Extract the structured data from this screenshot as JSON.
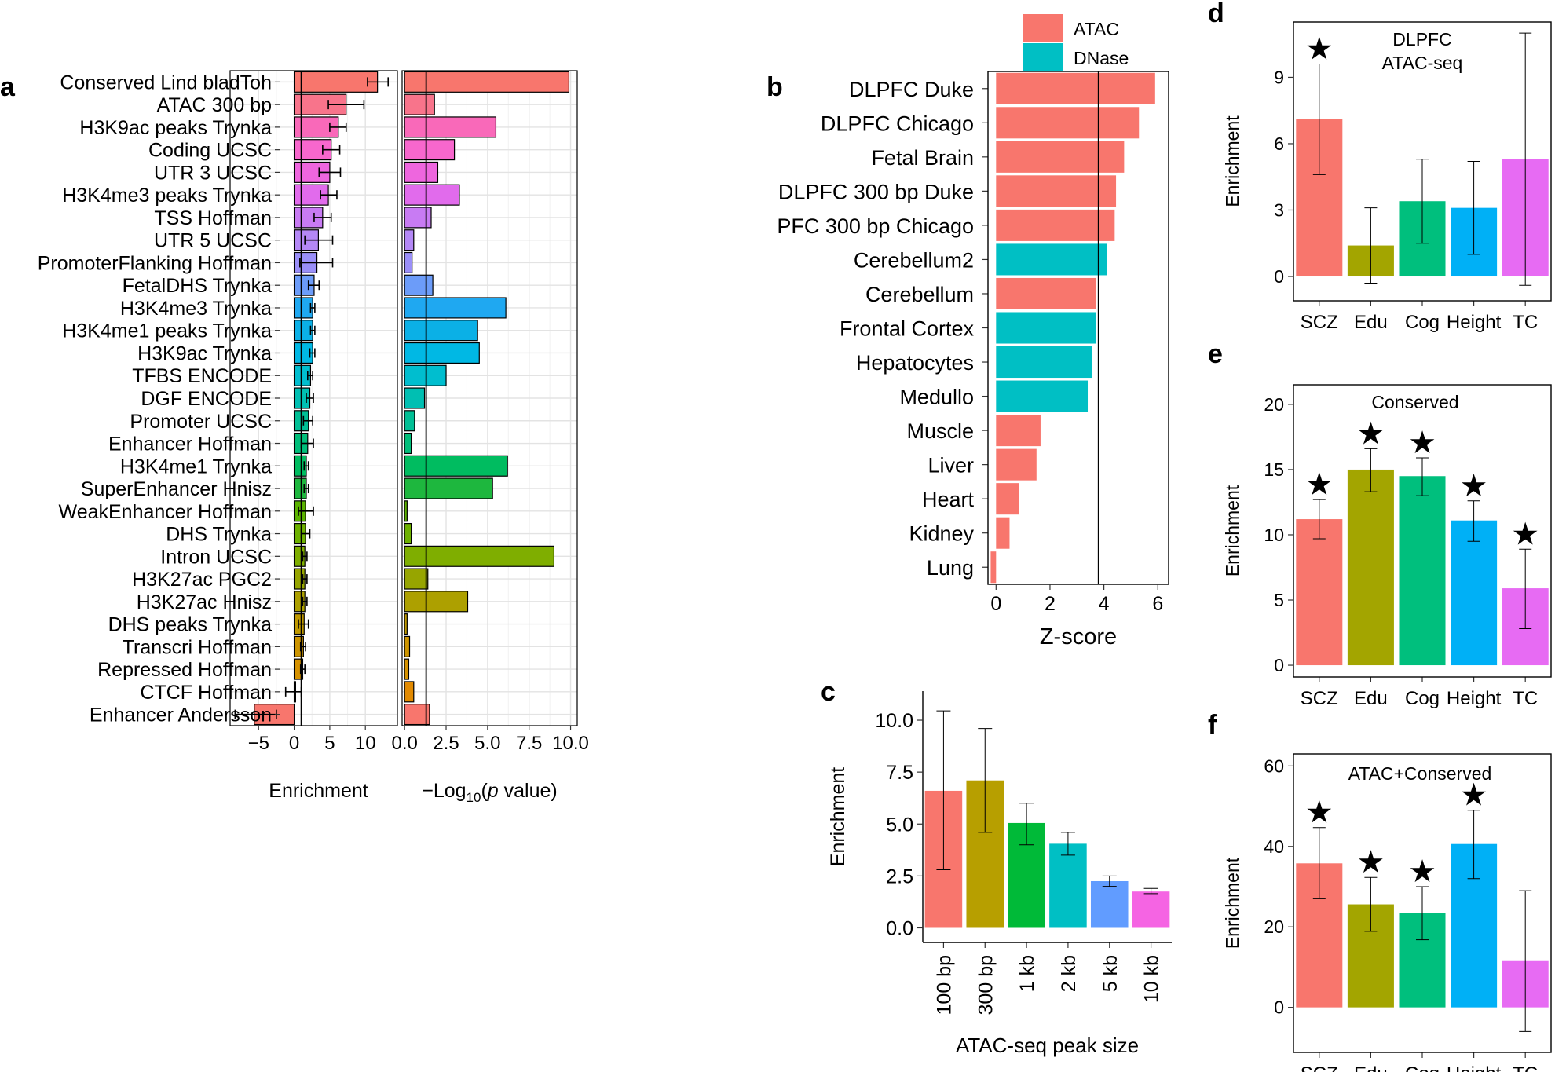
{
  "chart_data": [
    {
      "panel": "a",
      "type": "bar",
      "orientation": "horizontal",
      "subplots": [
        {
          "name": "enrichment",
          "xlabel": "Enrichment",
          "xlim": [
            -9,
            14.5
          ],
          "xticks": [
            -5,
            0,
            5,
            10
          ],
          "xtick_labels": [
            "−5",
            "0",
            "5",
            "10"
          ],
          "reference_line": 1
        },
        {
          "name": "pvalue",
          "xlabel": "−Log10(p value)",
          "xlabel_parts": [
            "−Log",
            "10",
            "(",
            "p",
            " value)"
          ],
          "xlim": [
            -0.15,
            10.4
          ],
          "xticks": [
            0,
            2.5,
            5,
            7.5,
            10
          ],
          "xtick_labels": [
            "0.0",
            "2.5",
            "5.0",
            "7.5",
            "10.0"
          ],
          "reference_line": 1.3
        }
      ],
      "categories": [
        "Conserved Lind bladToh",
        "ATAC 300 bp",
        "H3K9ac peaks Trynka",
        "Coding UCSC",
        "UTR 3 UCSC",
        "H3K4me3 peaks Trynka",
        "TSS Hoffman",
        "UTR 5 UCSC",
        "PromoterFlanking Hoffman",
        "FetalDHS Trynka",
        "H3K4me3 Trynka",
        "H3K4me1 peaks Trynka",
        "H3K9ac Trynka",
        "TFBS ENCODE",
        "DGF ENCODE",
        "Promoter UCSC",
        "Enhancer Hoffman",
        "H3K4me1 Trynka",
        "SuperEnhancer Hnisz",
        "WeakEnhancer Hoffman",
        "DHS Trynka",
        "Intron UCSC",
        "H3K27ac PGC2",
        "H3K27ac Hnisz",
        "DHS peaks Trynka",
        "Transcri Hoffman",
        "Repressed Hoffman",
        "CTCF Hoffman",
        "Enhancer Andersson"
      ],
      "enrichment": [
        11.7,
        7.3,
        6.2,
        5.2,
        5.0,
        4.8,
        4.0,
        3.4,
        3.2,
        2.8,
        2.6,
        2.6,
        2.6,
        2.3,
        2.2,
        2.0,
        1.9,
        1.7,
        1.7,
        1.6,
        1.6,
        1.5,
        1.5,
        1.5,
        1.4,
        1.3,
        1.2,
        0.2,
        -5.6
      ],
      "enrichment_err_low": [
        10.3,
        4.8,
        5.0,
        4.0,
        3.5,
        3.7,
        2.8,
        1.5,
        0.8,
        2.0,
        2.3,
        2.3,
        2.2,
        1.9,
        1.7,
        1.3,
        1.0,
        1.4,
        1.4,
        0.6,
        1.0,
        1.2,
        1.2,
        1.2,
        0.6,
        0.9,
        0.9,
        -1.2,
        -8.3
      ],
      "enrichment_err_high": [
        13.2,
        9.8,
        7.3,
        6.4,
        6.5,
        6.0,
        5.2,
        5.4,
        5.4,
        3.5,
        2.9,
        2.9,
        2.9,
        2.6,
        2.7,
        2.6,
        2.7,
        2.0,
        2.0,
        2.7,
        2.2,
        1.8,
        1.8,
        1.8,
        2.0,
        1.6,
        1.5,
        1.0,
        -2.5
      ],
      "pvalue": [
        9.9,
        1.8,
        5.5,
        3.0,
        2.0,
        3.3,
        1.6,
        0.55,
        0.45,
        1.7,
        6.1,
        4.4,
        4.5,
        2.5,
        1.2,
        0.6,
        0.4,
        6.2,
        5.3,
        0.15,
        0.4,
        9.0,
        1.4,
        3.8,
        0.15,
        0.3,
        0.25,
        0.55,
        1.5
      ],
      "colors": [
        "#F8766D",
        "#F8748B",
        "#F969B9",
        "#F767CD",
        "#EE66DE",
        "#E16BEC",
        "#C87BF3",
        "#B488F6",
        "#9A8FF8",
        "#6C9CF9",
        "#1FA8F1",
        "#0BB0E6",
        "#00B8E4",
        "#00BECF",
        "#00BFB2",
        "#00BF95",
        "#00BE7A",
        "#00BC60",
        "#1EB73E",
        "#5BB300",
        "#6DB100",
        "#7FAE00",
        "#97A500",
        "#ADA000",
        "#C09900",
        "#CD9500",
        "#D69200",
        "#E28A00",
        "#F8766D"
      ]
    },
    {
      "panel": "b",
      "type": "bar",
      "orientation": "horizontal",
      "xlabel": "Z-score",
      "xlim": [
        -0.3,
        6.4
      ],
      "xticks": [
        0,
        2,
        4,
        6
      ],
      "xtick_labels": [
        "0",
        "2",
        "4",
        "6"
      ],
      "reference_line": 3.8,
      "legend": [
        {
          "label": "ATAC",
          "color": "#F8766D"
        },
        {
          "label": "DNase",
          "color": "#00BFC4"
        }
      ],
      "categories": [
        "DLPFC Duke",
        "DLPFC Chicago",
        "Fetal Brain",
        "DLPFC 300 bp Duke",
        "PFC 300 bp Chicago",
        "Cerebellum2",
        "Cerebellum",
        "Frontal Cortex",
        "Hepatocytes",
        "Medullo",
        "Muscle",
        "Liver",
        "Heart",
        "Kidney",
        "Lung"
      ],
      "values": [
        5.9,
        5.3,
        4.75,
        4.45,
        4.4,
        4.1,
        3.7,
        3.7,
        3.55,
        3.4,
        1.65,
        1.5,
        0.85,
        0.5,
        -0.2
      ],
      "assay": [
        "ATAC",
        "ATAC",
        "ATAC",
        "ATAC",
        "ATAC",
        "DNase",
        "ATAC",
        "DNase",
        "DNase",
        "DNase",
        "ATAC",
        "ATAC",
        "ATAC",
        "ATAC",
        "ATAC"
      ]
    },
    {
      "panel": "c",
      "type": "bar",
      "xlabel": "ATAC-seq peak size",
      "ylabel": "Enrichment",
      "ylim": [
        -0.7,
        11.4
      ],
      "yticks": [
        0,
        2.5,
        5,
        7.5,
        10
      ],
      "ytick_labels": [
        "0.0",
        "2.5",
        "5.0",
        "7.5",
        "10.0"
      ],
      "categories": [
        "100 bp",
        "300 bp",
        "1 kb",
        "2 kb",
        "5 kb",
        "10 kb"
      ],
      "values": [
        6.6,
        7.1,
        5.05,
        4.05,
        2.25,
        1.75
      ],
      "err_low": [
        2.8,
        4.6,
        4.0,
        3.5,
        2.0,
        1.65
      ],
      "err_high": [
        10.45,
        9.6,
        6.0,
        4.6,
        2.5,
        1.9
      ],
      "colors": [
        "#F8766D",
        "#B79F00",
        "#00BA38",
        "#00BFC4",
        "#619CFF",
        "#F564E3"
      ]
    },
    {
      "panel": "d",
      "type": "bar",
      "title": "DLPFC ATAC-seq",
      "title_lines": [
        "DLPFC",
        "ATAC-seq"
      ],
      "ylabel": "Enrichment",
      "ylim": [
        -1.1,
        11.5
      ],
      "yticks": [
        0,
        3,
        6,
        9
      ],
      "ytick_labels": [
        "0",
        "3",
        "6",
        "9"
      ],
      "categories": [
        "SCZ",
        "Edu",
        "Cog",
        "Height",
        "TC"
      ],
      "values": [
        7.1,
        1.4,
        3.4,
        3.1,
        5.3
      ],
      "err_low": [
        4.6,
        -0.3,
        1.5,
        1.0,
        -0.4
      ],
      "err_high": [
        9.6,
        3.1,
        5.3,
        5.2,
        11.0
      ],
      "significant": [
        true,
        false,
        false,
        false,
        false
      ],
      "colors": [
        "#F8766D",
        "#A3A500",
        "#00BF7D",
        "#00B0F6",
        "#E76BF3"
      ]
    },
    {
      "panel": "e",
      "type": "bar",
      "title": "Conserved",
      "title_lines": [
        "Conserved"
      ],
      "ylabel": "Enrichment",
      "ylim": [
        -0.9,
        21.5
      ],
      "yticks": [
        0,
        5,
        10,
        15,
        20
      ],
      "ytick_labels": [
        "0",
        "5",
        "10",
        "15",
        "20"
      ],
      "categories": [
        "SCZ",
        "Edu",
        "Cog",
        "Height",
        "TC"
      ],
      "values": [
        11.2,
        15.0,
        14.5,
        11.1,
        5.9
      ],
      "err_low": [
        9.7,
        13.3,
        13.0,
        9.5,
        2.8
      ],
      "err_high": [
        12.7,
        16.6,
        15.9,
        12.6,
        8.9
      ],
      "significant": [
        true,
        true,
        true,
        true,
        true
      ],
      "colors": [
        "#F8766D",
        "#A3A500",
        "#00BF7D",
        "#00B0F6",
        "#E76BF3"
      ]
    },
    {
      "panel": "f",
      "type": "bar",
      "title": "ATAC+Conserved",
      "title_lines": [
        "ATAC+Conserved"
      ],
      "ylabel": "Enrichment",
      "ylim": [
        -11.2,
        63
      ],
      "yticks": [
        0,
        20,
        40,
        60
      ],
      "ytick_labels": [
        "0",
        "20",
        "40",
        "60"
      ],
      "categories": [
        "SCZ",
        "Edu",
        "Cog",
        "Height",
        "TC"
      ],
      "values": [
        35.8,
        25.6,
        23.4,
        40.6,
        11.5
      ],
      "err_low": [
        27.0,
        18.9,
        16.8,
        32.0,
        -6.0
      ],
      "err_high": [
        44.7,
        32.3,
        30.0,
        49.0,
        29.0
      ],
      "significant": [
        true,
        true,
        true,
        true,
        false
      ],
      "colors": [
        "#F8766D",
        "#A3A500",
        "#00BF7D",
        "#00B0F6",
        "#E76BF3"
      ]
    }
  ],
  "panel_labels": {
    "a": "a",
    "b": "b",
    "c": "c",
    "d": "d",
    "e": "e",
    "f": "f"
  },
  "significance_marker": "★"
}
